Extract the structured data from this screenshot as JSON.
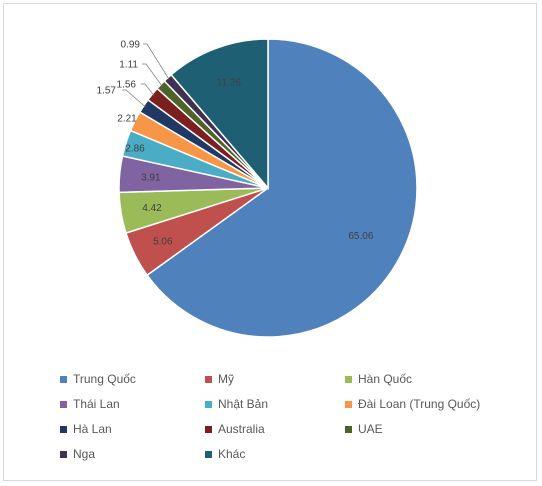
{
  "chart_data": {
    "type": "pie",
    "categories": [
      "Trung Quốc",
      "Mỹ",
      "Hàn Quốc",
      "Thái Lan",
      "Nhật Bản",
      "Đài Loan (Trung Quốc)",
      "Hà Lan",
      "Australia",
      "UAE",
      "Nga",
      "Khác"
    ],
    "values": [
      65.06,
      5.06,
      4.42,
      3.91,
      2.86,
      2.21,
      1.57,
      1.56,
      1.11,
      0.99,
      11.26
    ],
    "data_labels": [
      "65.06",
      "5.06",
      "4.42",
      "3.91",
      "2.86",
      "2.21",
      "1.57",
      "1.56",
      "1.11",
      "0.99",
      "11.26"
    ],
    "colors": [
      "#4f81bd",
      "#c0504d",
      "#9bbb59",
      "#8064a2",
      "#4bacc6",
      "#f79646",
      "#1f3864",
      "#7b1f1f",
      "#4f6228",
      "#3f3151",
      "#1f5f73"
    ],
    "title": "",
    "legend_position": "bottom",
    "start_angle_deg": 0,
    "direction": "clockwise"
  }
}
